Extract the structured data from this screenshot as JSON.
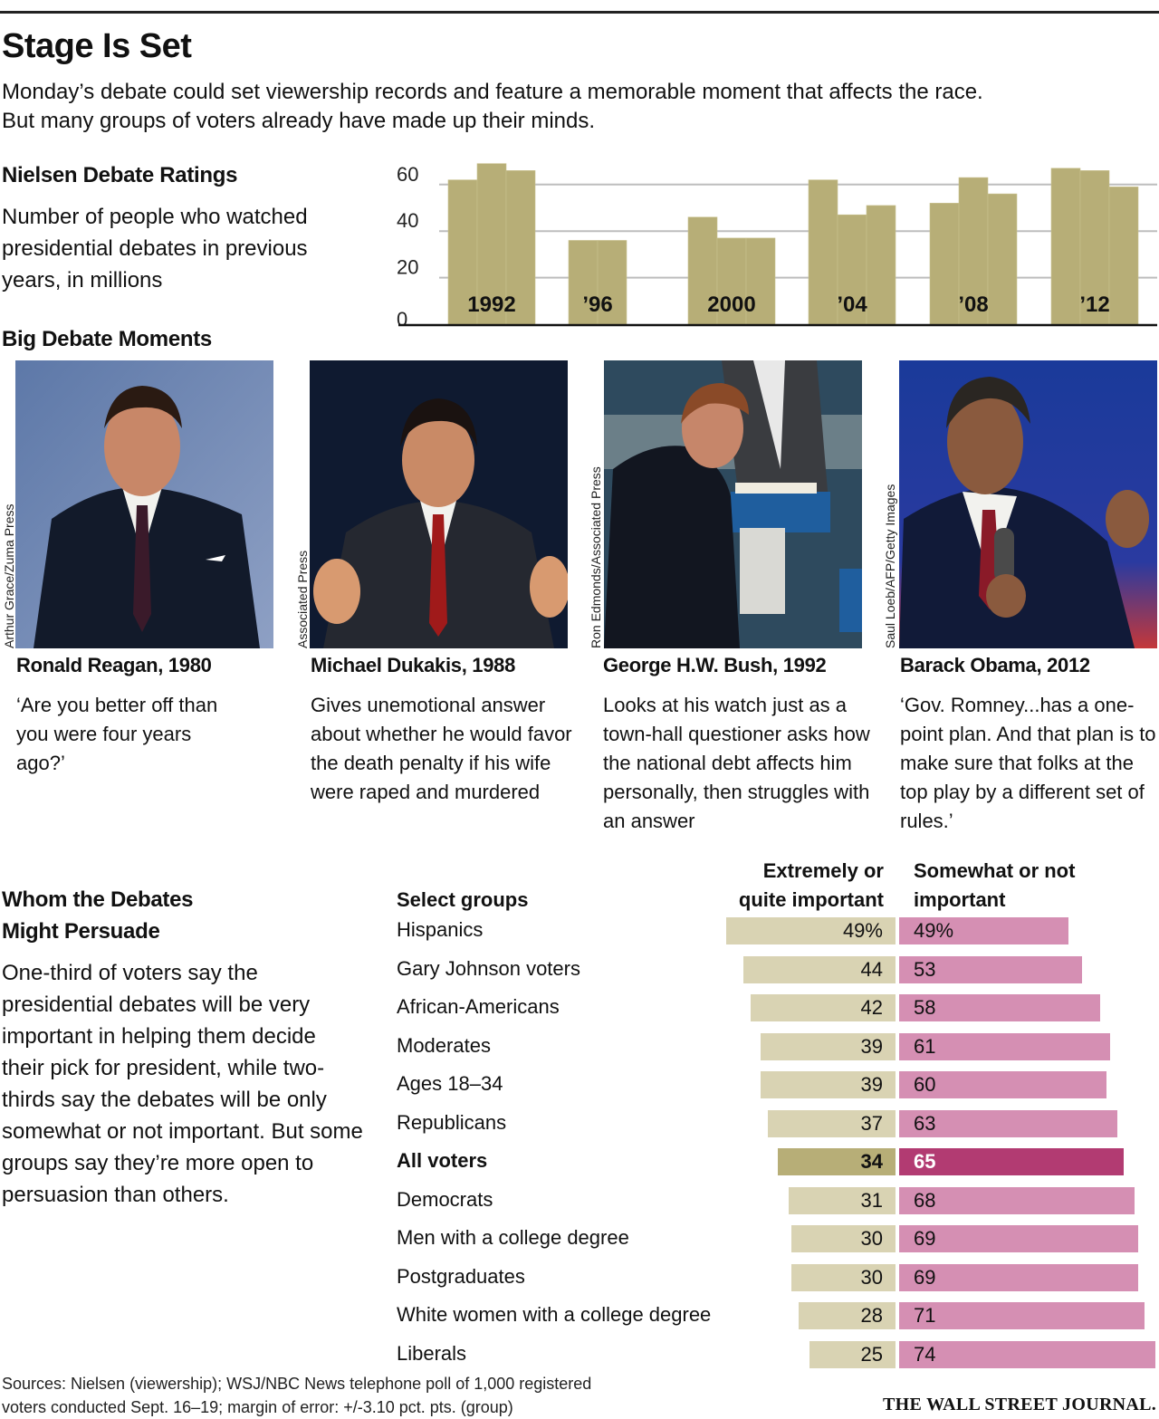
{
  "header": {
    "title": "Stage Is Set",
    "dek": "Monday’s debate could set viewership records and feature a memorable moment that affects the race. But many groups of voters already have made up their minds."
  },
  "ratings": {
    "heading": "Nielsen Debate Ratings",
    "description": "Number of people who watched presidential debates in previous years, in millions"
  },
  "moments": {
    "heading": "Big Debate Moments",
    "items": [
      {
        "name": "Ronald Reagan, 1980",
        "text": "‘Are you better off than you were four years ago?’",
        "credit": "Arthur Grace/Zuma Press"
      },
      {
        "name": "Michael Dukakis, 1988",
        "text": "Gives unemotional answer about whether he would favor the death penalty if his wife were raped and murdered",
        "credit": "Associated Press"
      },
      {
        "name": "George H.W. Bush, 1992",
        "text": "Looks at his watch just as a town-hall questioner asks how the national debt affects him personally, then struggles with an answer",
        "credit": "Ron Edmonds/Associated Press"
      },
      {
        "name": "Barack Obama, 2012",
        "text": "‘Gov. Romney...has a one-point plan. And that plan is to make sure that folks at the top play by a different set of rules.’",
        "credit": "Saul Loeb/AFP/Getty Images"
      }
    ]
  },
  "persuade": {
    "heading_line1": "Whom the Debates",
    "heading_line2": "Might Persuade",
    "body": "One-third of voters say the presidential debates will be very important in helping them decide their pick for president, while two-thirds say the debates will be only somewhat or not important. But some groups say they’re more open to persuasion than others."
  },
  "footer": {
    "sources_line1": "Sources: Nielsen (viewership); WSJ/NBC News telephone poll of 1,000 registered",
    "sources_line2": "voters conducted Sept. 16–19; margin of error: +/-3.10 pct. pts. (group)",
    "logo": "THE WALL STREET JOURNAL."
  },
  "colors": {
    "ratings_bar": "#b7ae77",
    "important_bar": "#d9d3b3",
    "important_bar_highlight": "#b7ae77",
    "not_important_bar": "#d58fb3",
    "not_important_bar_highlight": "#b23b72"
  },
  "chart_data": [
    {
      "type": "bar",
      "title": "Nielsen Debate Ratings",
      "subtitle": "Number of people who watched presidential debates in previous years, in millions",
      "xlabel": "",
      "ylabel": "",
      "ylim": [
        0,
        70
      ],
      "yticks": [
        0,
        20,
        40,
        60
      ],
      "grid": true,
      "groups": [
        {
          "label": "1992",
          "values": [
            62,
            69,
            66
          ]
        },
        {
          "label": "’96",
          "values": [
            36,
            36
          ]
        },
        {
          "label": "2000",
          "values": [
            46,
            37,
            37
          ]
        },
        {
          "label": "’04",
          "values": [
            62,
            47,
            51
          ]
        },
        {
          "label": "’08",
          "values": [
            52,
            63,
            56
          ]
        },
        {
          "label": "’12",
          "values": [
            67,
            66,
            59
          ]
        }
      ]
    },
    {
      "type": "bar",
      "orientation": "horizontal-diverging",
      "title": "Whom the Debates Might Persuade",
      "category_header": "Select groups",
      "series": [
        {
          "name": "Extremely or quite important",
          "values": [
            49,
            44,
            42,
            39,
            39,
            37,
            34,
            31,
            30,
            30,
            28,
            25
          ]
        },
        {
          "name": "Somewhat or not important",
          "values": [
            49,
            53,
            58,
            61,
            60,
            63,
            65,
            68,
            69,
            69,
            71,
            74
          ]
        }
      ],
      "categories": [
        "Hispanics",
        "Gary Johnson voters",
        "African-Americans",
        "Moderates",
        "Ages 18–34",
        "Republicans",
        "All voters",
        "Democrats",
        "Men with a college degree",
        "Postgraduates",
        "White women with a college degree",
        "Liberals"
      ],
      "highlight": "All voters",
      "unit": "%",
      "series_header_1_line1": "Extremely or",
      "series_header_1_line2": "quite important",
      "series_header_2_line1": "Somewhat or not",
      "series_header_2_line2": "important"
    }
  ]
}
